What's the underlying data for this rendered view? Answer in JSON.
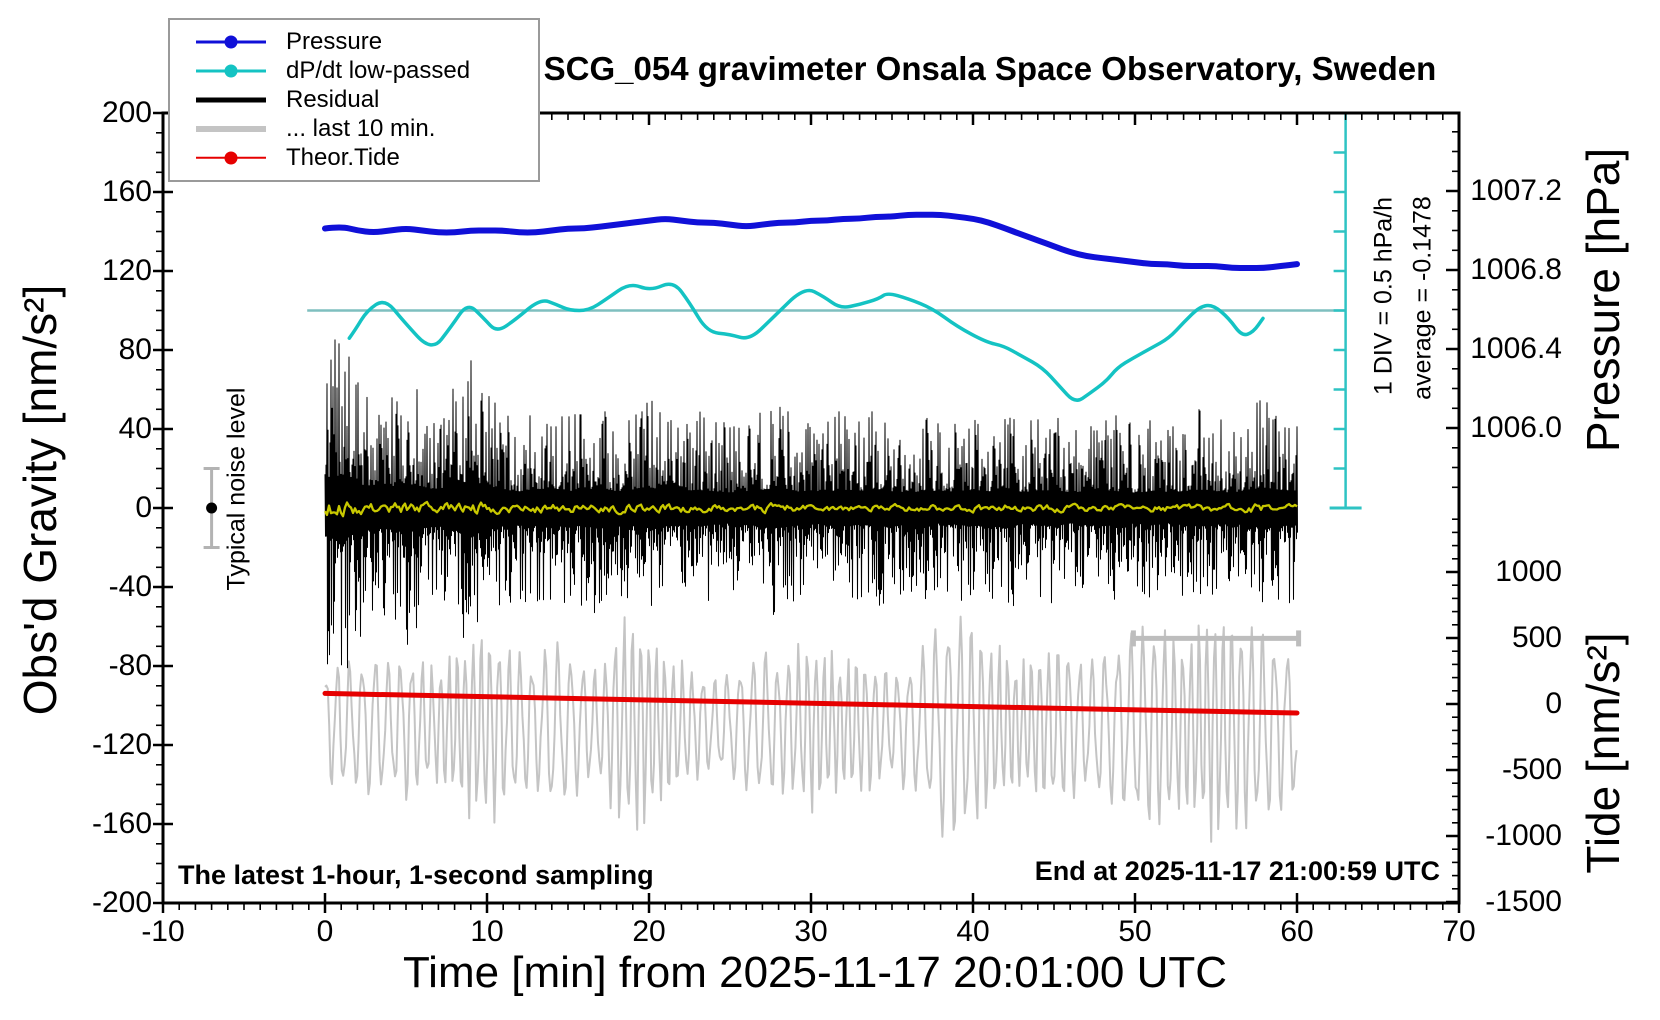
{
  "title": "SCG_054 gravimeter Onsala Space Observatory, Sweden",
  "legend": {
    "items": [
      {
        "label": "Pressure",
        "color": "#1010d8",
        "dot": true,
        "thickness": 3
      },
      {
        "label": "dP/dt low-passed",
        "color": "#14c3c3",
        "dot": true,
        "thickness": 3
      },
      {
        "label": "Residual",
        "color": "#000000",
        "dot": false,
        "thickness": 5
      },
      {
        "label": "... last 10 min.",
        "color": "#c4c4c4",
        "dot": false,
        "thickness": 6
      },
      {
        "label": "Theor.Tide",
        "color": "#e60000",
        "dot": true,
        "thickness": 2.5
      }
    ]
  },
  "annotations": {
    "sampling_note": "The latest 1-hour, 1-second sampling",
    "end_note": "End at 2025-11-17 21:00:59 UTC",
    "noise_label": "Typical noise level",
    "div_scale_label": "1 DIV = 0.5 hPa/h",
    "average_label": "average = -0.1478"
  },
  "axes": {
    "x": {
      "label": "Time [min] from 2025-11-17 20:01:00 UTC",
      "min": -10,
      "max": 70,
      "minor_step": 1,
      "major_ticks": [
        {
          "label": "-10",
          "value": -10
        },
        {
          "label": "0",
          "value": 0
        },
        {
          "label": "10",
          "value": 10
        },
        {
          "label": "20",
          "value": 20
        },
        {
          "label": "30",
          "value": 30
        },
        {
          "label": "40",
          "value": 40
        },
        {
          "label": "50",
          "value": 50
        },
        {
          "label": "60",
          "value": 60
        },
        {
          "label": "70",
          "value": 70
        }
      ]
    },
    "gravity": {
      "label": "Obs'd Gravity [nm/s²]",
      "min": -200,
      "max": 200,
      "minor_step": 10,
      "major_ticks": [
        {
          "label": "200",
          "value": 200
        },
        {
          "label": "160",
          "value": 160
        },
        {
          "label": "120",
          "value": 120
        },
        {
          "label": "80",
          "value": 80
        },
        {
          "label": "40",
          "value": 40
        },
        {
          "label": "0",
          "value": 0
        },
        {
          "label": "-40",
          "value": -40
        },
        {
          "label": "-80",
          "value": -80
        },
        {
          "label": "-120",
          "value": -120
        },
        {
          "label": "-160",
          "value": -160
        },
        {
          "label": "-200",
          "value": -200
        }
      ]
    },
    "pressure": {
      "label": "Pressure [hPa]",
      "minor_step": 0.1,
      "major_ticks": [
        {
          "label": "1007.2",
          "value": 1007.2
        },
        {
          "label": "1006.8",
          "value": 1006.8
        },
        {
          "label": "1006.4",
          "value": 1006.4
        },
        {
          "label": "1006.0",
          "value": 1006.0
        }
      ]
    },
    "tide": {
      "label": "Tide [nm/s²]",
      "minor_step": 100,
      "major_ticks": [
        {
          "label": "1000",
          "value": 1000
        },
        {
          "label": "500",
          "value": 500
        },
        {
          "label": "0",
          "value": 0
        },
        {
          "label": "-500",
          "value": -500
        },
        {
          "label": "-1000",
          "value": -1000
        },
        {
          "label": "-1500",
          "value": -1500
        }
      ]
    }
  },
  "chart_data": {
    "type": "line",
    "title": "SCG_054 gravimeter Onsala Space Observatory, Sweden",
    "xlabel": "Time [min] from 2025-11-17 20:01:00 UTC",
    "x_range_min": [
      -10,
      70
    ],
    "gravity_range": [
      -200,
      200
    ],
    "pressure_tick_values": [
      1007.2,
      1006.8,
      1006.4,
      1006.0
    ],
    "tide_tick_values": [
      1000,
      500,
      0,
      -500,
      -1000,
      -1500
    ],
    "series": [
      {
        "name": "Pressure",
        "axis": "pressure",
        "color": "#1010d8",
        "width": 6,
        "draw": "smooth",
        "x_start": 0,
        "x_step": 1,
        "values": [
          1007.01,
          1007.02,
          1007.0,
          1006.99,
          1007.0,
          1007.01,
          1007.0,
          1006.99,
          1006.99,
          1007.0,
          1007.0,
          1007.0,
          1006.99,
          1006.99,
          1007.0,
          1007.01,
          1007.01,
          1007.02,
          1007.03,
          1007.04,
          1007.05,
          1007.06,
          1007.05,
          1007.04,
          1007.04,
          1007.03,
          1007.02,
          1007.03,
          1007.04,
          1007.04,
          1007.05,
          1007.05,
          1007.06,
          1007.06,
          1007.07,
          1007.07,
          1007.08,
          1007.08,
          1007.08,
          1007.07,
          1007.06,
          1007.04,
          1007.01,
          1006.98,
          1006.95,
          1006.92,
          1006.89,
          1006.87,
          1006.86,
          1006.85,
          1006.84,
          1006.83,
          1006.83,
          1006.82,
          1006.82,
          1006.82,
          1006.81,
          1006.81,
          1006.81,
          1006.82,
          1006.83
        ]
      },
      {
        "name": "dP/dt low-passed",
        "axis": "gravity",
        "color": "#14c3c3",
        "width": 3.5,
        "draw": "smooth",
        "points": [
          [
            1.5,
            86
          ],
          [
            1.85,
            90
          ],
          [
            2.6,
            100
          ],
          [
            3.7,
            106
          ],
          [
            4.8,
            95
          ],
          [
            6.6,
            79
          ],
          [
            7.8,
            92
          ],
          [
            8.8,
            104
          ],
          [
            9.8,
            96
          ],
          [
            10.6,
            89
          ],
          [
            11.7,
            95
          ],
          [
            13.3,
            106
          ],
          [
            14.3,
            103
          ],
          [
            15.1,
            100
          ],
          [
            16.3,
            100
          ],
          [
            17.4,
            106
          ],
          [
            18.8,
            114
          ],
          [
            20.1,
            110
          ],
          [
            21.5,
            115
          ],
          [
            22.5,
            104
          ],
          [
            23.6,
            89
          ],
          [
            25.0,
            88
          ],
          [
            26.2,
            85
          ],
          [
            27.6,
            96
          ],
          [
            29.6,
            112
          ],
          [
            30.8,
            107
          ],
          [
            31.8,
            101
          ],
          [
            33.0,
            103
          ],
          [
            34.2,
            106
          ],
          [
            34.7,
            109
          ],
          [
            36.0,
            106
          ],
          [
            37.5,
            101
          ],
          [
            39.0,
            92
          ],
          [
            40.8,
            84
          ],
          [
            41.9,
            82
          ],
          [
            43.0,
            77
          ],
          [
            44.3,
            71
          ],
          [
            45.3,
            62
          ],
          [
            46.3,
            53
          ],
          [
            47.2,
            58
          ],
          [
            48.2,
            64
          ],
          [
            48.9,
            71
          ],
          [
            49.9,
            76
          ],
          [
            51.0,
            81
          ],
          [
            52.1,
            86
          ],
          [
            53.0,
            94
          ],
          [
            54.0,
            102
          ],
          [
            54.8,
            103
          ],
          [
            55.8,
            96
          ],
          [
            56.6,
            87
          ],
          [
            57.3,
            89
          ],
          [
            57.9,
            96
          ]
        ]
      },
      {
        "name": "Theor.Tide",
        "axis": "tide",
        "color": "#e60000",
        "width": 5,
        "draw": "smooth",
        "points": [
          [
            0,
            80
          ],
          [
            10,
            55
          ],
          [
            20,
            30
          ],
          [
            30,
            6
          ],
          [
            40,
            -19
          ],
          [
            50,
            -44
          ],
          [
            60,
            -68
          ]
        ]
      },
      {
        "name": "Residual",
        "axis": "gravity",
        "color": "#000000",
        "draw": "noise-band",
        "center": 0,
        "x_range": [
          0,
          60
        ],
        "amp_per_min": [
          78,
          92,
          66,
          60,
          56,
          70,
          56,
          50,
          62,
          76,
          62,
          50,
          46,
          50,
          56,
          46,
          50,
          56,
          46,
          50,
          56,
          50,
          46,
          50,
          46,
          42,
          46,
          50,
          56,
          46,
          42,
          46,
          50,
          46,
          50,
          46,
          42,
          46,
          42,
          46,
          50,
          46,
          56,
          42,
          46,
          50,
          42,
          46,
          50,
          46,
          42,
          46,
          42,
          46,
          50,
          46,
          42,
          50,
          56,
          50,
          46
        ]
      },
      {
        "name": "Residual low-passed",
        "axis": "gravity",
        "color": "#c8c800",
        "draw": "noise-walk",
        "width": 2.3,
        "center": 0,
        "x_range": [
          0,
          60
        ],
        "amp_per_min": [
          7,
          8,
          6,
          5,
          5,
          6,
          5,
          4,
          5,
          6,
          5,
          4,
          4,
          4,
          4,
          4,
          4,
          4,
          4,
          4,
          4,
          4,
          4,
          4,
          4,
          3,
          3,
          4,
          4,
          4,
          3,
          3,
          3,
          3,
          3,
          3,
          3,
          3,
          3,
          3,
          4,
          3,
          4,
          3,
          3,
          4,
          3,
          3,
          3,
          3,
          3,
          3,
          3,
          3,
          4,
          3,
          3,
          4,
          4,
          4,
          3
        ]
      },
      {
        "name": "... last 10 min.",
        "axis": "gravity",
        "color": "#c4c4c4",
        "draw": "oscillation",
        "width": 2,
        "center": -110,
        "x_range": [
          0,
          60
        ],
        "period_min": 0.65,
        "amp_per_min": [
          28,
          32,
          30,
          36,
          30,
          36,
          30,
          28,
          36,
          42,
          46,
          40,
          34,
          30,
          42,
          36,
          30,
          26,
          46,
          52,
          46,
          36,
          30,
          26,
          22,
          26,
          30,
          36,
          30,
          36,
          40,
          36,
          30,
          36,
          30,
          26,
          30,
          36,
          52,
          55,
          50,
          40,
          36,
          30,
          36,
          40,
          36,
          30,
          36,
          40,
          46,
          50,
          46,
          40,
          52,
          55,
          52,
          50,
          46,
          40,
          36
        ]
      }
    ],
    "markers": {
      "noise_errorbar": {
        "t": -7.0,
        "center": 0,
        "half_range": 20,
        "color": "#b3b3b3"
      },
      "ten_min_scalebar": {
        "t_start": 49.9,
        "t_end": 60.1,
        "gravity": -66,
        "color": "#bdbdbd"
      },
      "dpdt_zero_line": {
        "gravity": 100,
        "t_start": -1.1,
        "t_end": 63.0,
        "color": "#7fbfbf"
      },
      "dpdt_scale_bar": {
        "t": 63.0,
        "gravity_top": 200,
        "gravity_bottom": 0,
        "tick_every": 20,
        "color": "#2ec3c3"
      }
    }
  }
}
